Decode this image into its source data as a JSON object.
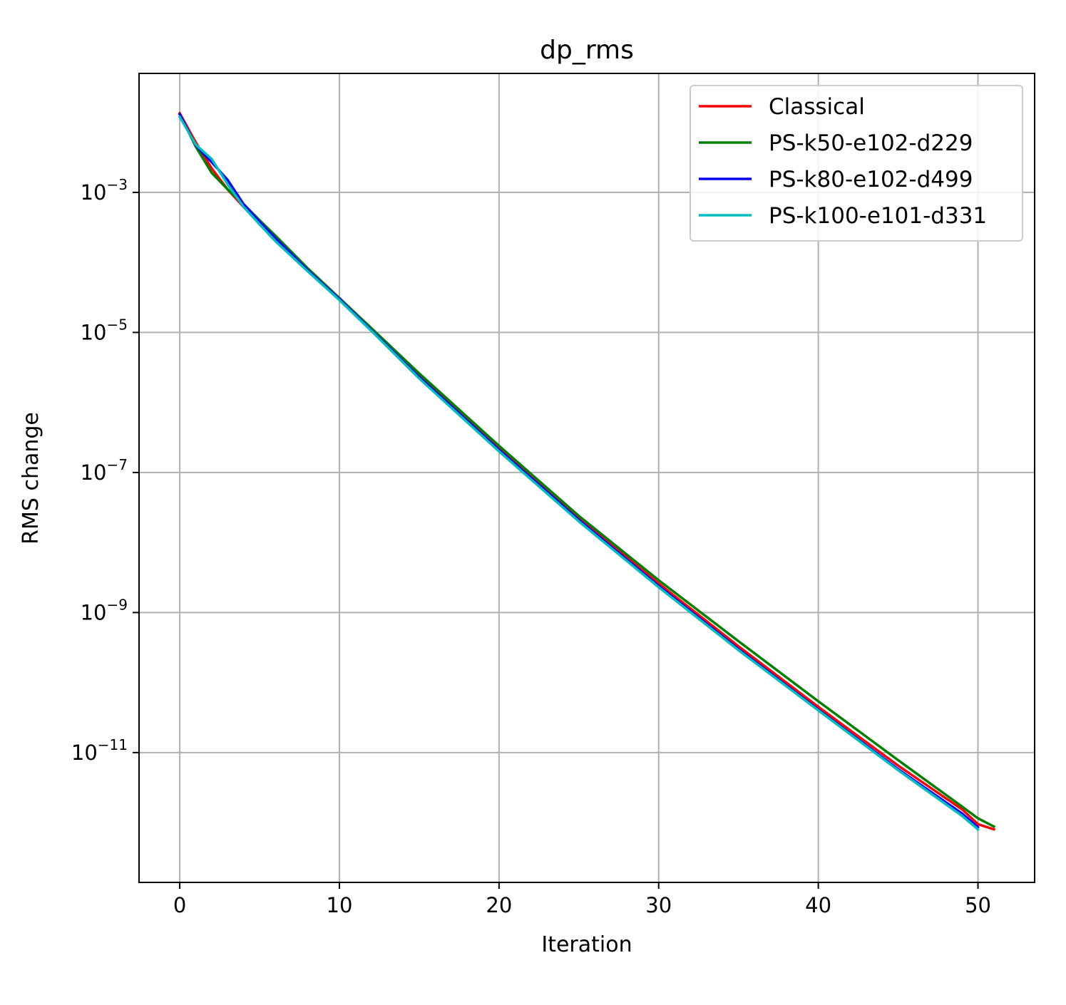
{
  "chart_data": {
    "type": "line",
    "title": "dp_rms",
    "xlabel": "Iteration",
    "ylabel": "RMS change",
    "xscale": "linear",
    "yscale": "log",
    "xlim": [
      -2.55,
      53.55
    ],
    "ylim": [
      1.4e-13,
      0.05
    ],
    "xticks": [
      0,
      10,
      20,
      30,
      40,
      50
    ],
    "xtick_labels": [
      "0",
      "10",
      "20",
      "30",
      "40",
      "50"
    ],
    "yticks": [
      0.001,
      1e-05,
      1e-07,
      1e-09,
      1e-11
    ],
    "ytick_labels": [
      {
        "base": "10",
        "exp": "−3"
      },
      {
        "base": "10",
        "exp": "−5"
      },
      {
        "base": "10",
        "exp": "−7"
      },
      {
        "base": "10",
        "exp": "−9"
      },
      {
        "base": "10",
        "exp": "−11"
      }
    ],
    "grid": true,
    "legend_position": "top-right",
    "series": [
      {
        "name": "Classical",
        "color": "#ff0000",
        "x": [
          0,
          1,
          2,
          3,
          4,
          5,
          6,
          8,
          10,
          12,
          15,
          20,
          25,
          30,
          35,
          40,
          45,
          49,
          50,
          51
        ],
        "y": [
          0.0135,
          0.0052,
          0.0022,
          0.0011,
          0.00062,
          0.00036,
          0.00022,
          8e-05,
          3.1e-05,
          1.1e-05,
          2.4e-06,
          2.2e-07,
          2.2e-08,
          2.6e-09,
          3.3e-10,
          4.5e-11,
          6.5e-12,
          1.55e-12,
          9.5e-13,
          8e-13
        ]
      },
      {
        "name": "PS-k50-e102-d229",
        "color": "#008000",
        "x": [
          0,
          1,
          2,
          3,
          4,
          5,
          6,
          8,
          10,
          12,
          15,
          20,
          25,
          30,
          35,
          40,
          45,
          49,
          50,
          51
        ],
        "y": [
          0.013,
          0.0045,
          0.0019,
          0.0011,
          0.00068,
          0.0004,
          0.00024,
          8.3e-05,
          3.1e-05,
          1.15e-05,
          2.6e-06,
          2.4e-07,
          2.4e-08,
          2.9e-09,
          3.9e-10,
          5.4e-11,
          7.8e-12,
          1.7e-12,
          1.15e-12,
          8.8e-13
        ]
      },
      {
        "name": "PS-k80-e102-d499",
        "color": "#0000ff",
        "x": [
          0,
          1,
          2,
          3,
          4,
          5,
          6,
          8,
          10,
          12,
          15,
          20,
          25,
          30,
          35,
          40,
          45,
          49,
          50
        ],
        "y": [
          0.013,
          0.0047,
          0.0027,
          0.0015,
          0.00068,
          0.00038,
          0.00022,
          7.8e-05,
          3e-05,
          1.08e-05,
          2.3e-06,
          2.1e-07,
          2.1e-08,
          2.4e-09,
          3e-10,
          4.1e-11,
          5.8e-12,
          1.35e-12,
          8.6e-13
        ]
      },
      {
        "name": "PS-k100-e101-d331",
        "color": "#00bfbf",
        "x": [
          0,
          1,
          2,
          3,
          4,
          5,
          6,
          8,
          10,
          12,
          15,
          20,
          25,
          30,
          35,
          40,
          45,
          49,
          50
        ],
        "y": [
          0.012,
          0.0048,
          0.003,
          0.0013,
          0.00062,
          0.00035,
          0.0002,
          7.5e-05,
          2.9e-05,
          1.05e-05,
          2.2e-06,
          2e-07,
          2e-08,
          2.3e-09,
          2.9e-10,
          4e-11,
          5.6e-12,
          1.25e-12,
          8e-13
        ]
      }
    ]
  }
}
